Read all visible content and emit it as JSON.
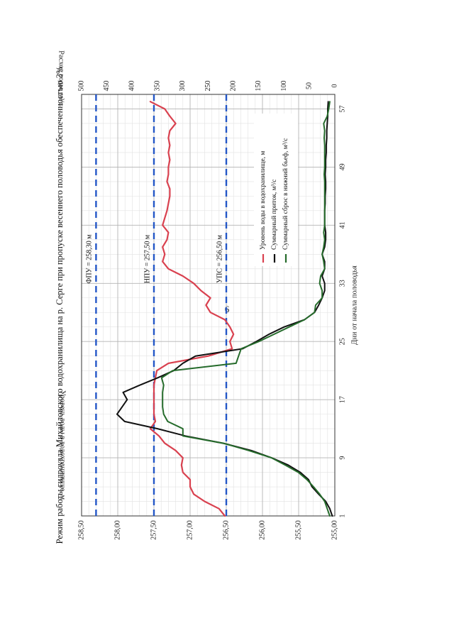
{
  "page_number": "6",
  "colors": {
    "level": "#d9414f",
    "inflow": "#111111",
    "outflow": "#256b2b",
    "reference": "#2457c7"
  },
  "chart_data": {
    "type": "line",
    "title": "Режим работы гидроузла Михайловского водохранилища на р. Серге при пропуске весеннего половодья обеспеченностью 3%",
    "xlabel": "Дни от начала половодья",
    "ylabel": "Уровень воды в водохранилище, м",
    "y2label": "Расход воды, м³/с",
    "xlim": [
      1,
      59
    ],
    "ylim": [
      255.0,
      258.5
    ],
    "y2lim": [
      0,
      500
    ],
    "x_ticks": [
      "1",
      "9",
      "17",
      "25",
      "33",
      "41",
      "49",
      "57"
    ],
    "y_ticks": [
      "255,00",
      "255,50",
      "256,00",
      "256,50",
      "257,00",
      "257,50",
      "258,00",
      "258,50"
    ],
    "y2_ticks": [
      "0",
      "50",
      "100",
      "150",
      "200",
      "250",
      "300",
      "350",
      "400",
      "450",
      "500"
    ],
    "reference_lines": [
      {
        "label": "ФПУ = 258,30 м",
        "value": 258.3
      },
      {
        "label": "НПУ = 257,50 м",
        "value": 257.5
      },
      {
        "label": "УПС = 256,50 м",
        "value": 256.5
      }
    ],
    "series": [
      {
        "name": "Уровень воды в водохранилище, м",
        "axis": "left",
        "x": [
          1,
          2,
          3,
          4,
          5,
          6,
          7,
          8,
          9,
          10,
          11,
          12,
          13,
          14,
          15,
          16,
          17,
          18,
          19,
          20,
          21,
          22,
          23,
          24,
          25,
          26,
          27,
          28,
          29,
          30,
          31,
          32,
          33,
          34,
          35,
          36,
          37,
          38,
          39,
          40,
          41,
          42,
          43,
          44,
          45,
          46,
          47,
          48,
          49,
          50,
          51,
          52,
          53,
          54,
          55,
          56,
          57,
          58
        ],
        "values": [
          256.52,
          256.6,
          256.8,
          256.95,
          257.0,
          257.0,
          257.1,
          257.12,
          257.1,
          257.2,
          257.35,
          257.43,
          257.55,
          257.48,
          257.5,
          257.5,
          257.5,
          257.5,
          257.5,
          257.48,
          257.46,
          257.3,
          256.75,
          256.42,
          256.45,
          256.4,
          256.45,
          256.52,
          256.72,
          256.78,
          256.72,
          256.85,
          256.95,
          257.1,
          257.3,
          257.38,
          257.35,
          257.38,
          257.32,
          257.3,
          257.38,
          257.35,
          257.32,
          257.3,
          257.28,
          257.28,
          257.32,
          257.3,
          257.3,
          257.28,
          257.3,
          257.28,
          257.3,
          257.28,
          257.2,
          257.28,
          257.35,
          257.55
        ]
      },
      {
        "name": "Суммарный приток, м³/с",
        "axis": "right",
        "x": [
          1,
          2,
          3,
          4,
          5,
          6,
          7,
          8,
          9,
          10,
          11,
          12,
          13,
          14,
          15,
          16,
          17,
          18,
          19,
          20,
          21,
          22,
          23,
          24,
          25,
          26,
          27,
          28,
          29,
          30,
          31,
          32,
          33,
          34,
          35,
          36,
          37,
          38,
          39,
          40,
          41,
          42,
          43,
          44,
          45,
          46,
          47,
          48,
          49,
          50,
          51,
          52,
          53,
          54,
          55,
          56,
          57,
          58
        ],
        "values": [
          5,
          10,
          18,
          32,
          45,
          52,
          68,
          92,
          125,
          165,
          220,
          295,
          350,
          415,
          430,
          420,
          410,
          418,
          385,
          350,
          318,
          300,
          275,
          182,
          155,
          130,
          100,
          60,
          40,
          32,
          25,
          20,
          20,
          25,
          20,
          20,
          25,
          20,
          18,
          18,
          20,
          20,
          20,
          19,
          19,
          18,
          18,
          19,
          18,
          18,
          17,
          17,
          16,
          16,
          15,
          14,
          14,
          13
        ]
      },
      {
        "name": "Суммарный сброс в нижний бьеф, м³/с",
        "axis": "right",
        "x": [
          1,
          2,
          3,
          4,
          5,
          6,
          7,
          8,
          9,
          10,
          11,
          12,
          13,
          14,
          15,
          16,
          17,
          18,
          19,
          20,
          21,
          22,
          23,
          24,
          25,
          26,
          27,
          28,
          29,
          30,
          31,
          32,
          33,
          34,
          35,
          36,
          37,
          38,
          39,
          40,
          41,
          42,
          43,
          44,
          45,
          46,
          47,
          48,
          49,
          50,
          51,
          52,
          53,
          54,
          55,
          56,
          57,
          58
        ],
        "values": [
          10,
          15,
          20,
          30,
          42,
          55,
          72,
          98,
          125,
          170,
          220,
          300,
          300,
          330,
          338,
          340,
          340,
          340,
          338,
          342,
          320,
          195,
          190,
          185,
          150,
          120,
          90,
          60,
          40,
          38,
          25,
          25,
          30,
          28,
          20,
          22,
          25,
          22,
          20,
          22,
          20,
          20,
          20,
          20,
          20,
          20,
          20,
          21,
          20,
          20,
          20,
          20,
          21,
          20,
          22,
          15,
          12,
          10
        ]
      }
    ]
  }
}
